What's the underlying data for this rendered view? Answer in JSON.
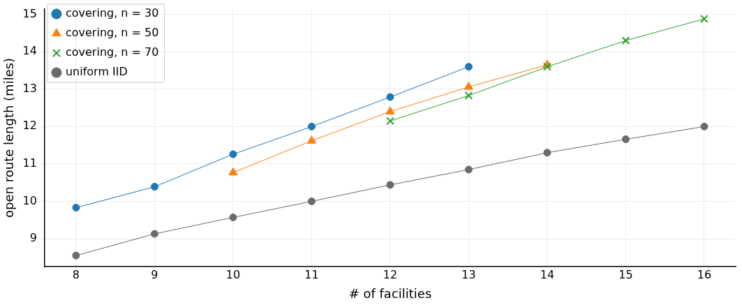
{
  "chart_data": {
    "type": "line",
    "xlabel": "# of facilities",
    "ylabel": "open route length (miles)",
    "xlim": [
      7.6,
      16.4
    ],
    "ylim": [
      8.25,
      15.15
    ],
    "xticks": [
      8,
      9,
      10,
      11,
      12,
      13,
      14,
      15,
      16
    ],
    "yticks": [
      9,
      10,
      11,
      12,
      13,
      14,
      15
    ],
    "grid": true,
    "legend": "top left",
    "series": [
      {
        "name": "covering, n = 30",
        "color": "#1f77b4",
        "marker": "circle",
        "x": [
          8,
          9,
          10,
          11,
          12,
          13
        ],
        "values": [
          9.83,
          10.39,
          11.26,
          12.0,
          12.79,
          13.6
        ]
      },
      {
        "name": "covering, n = 50",
        "color": "#ff7f0e",
        "marker": "triangle",
        "x": [
          10,
          11,
          12,
          13,
          14
        ],
        "values": [
          10.77,
          11.62,
          12.4,
          13.06,
          13.65
        ]
      },
      {
        "name": "covering, n = 70",
        "color": "#2ca02c",
        "marker": "cross",
        "x": [
          12,
          13,
          14,
          15,
          16
        ],
        "values": [
          12.15,
          12.83,
          13.6,
          14.3,
          14.88
        ]
      },
      {
        "name": "uniform IID",
        "color": "#6b6b6b",
        "marker": "circle",
        "x": [
          8,
          9,
          10,
          11,
          12,
          13,
          14,
          15,
          16
        ],
        "values": [
          8.55,
          9.13,
          9.57,
          10.0,
          10.44,
          10.85,
          11.3,
          11.66,
          12.0
        ]
      }
    ]
  }
}
